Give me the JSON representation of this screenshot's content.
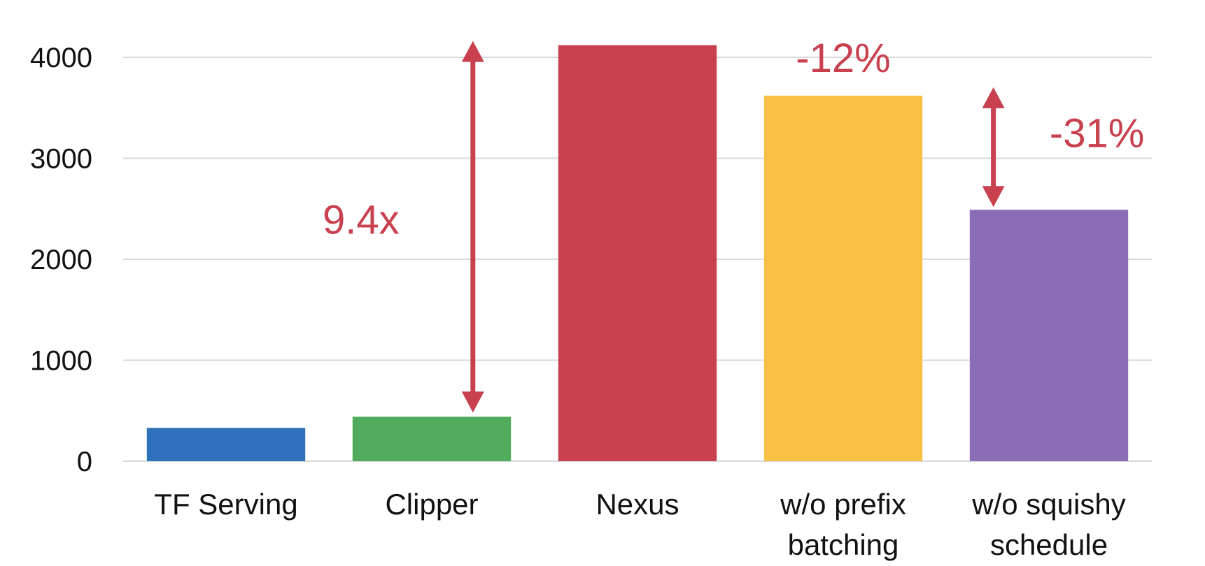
{
  "chart_data": {
    "type": "bar",
    "title": "",
    "xlabel": "",
    "ylabel": "",
    "ylim": [
      0,
      4000
    ],
    "yticks": [
      0,
      1000,
      2000,
      3000,
      4000
    ],
    "grid": true,
    "categories": [
      [
        "TF Serving"
      ],
      [
        "Clipper"
      ],
      [
        "Nexus"
      ],
      [
        "w/o prefix",
        "batching"
      ],
      [
        "w/o squishy",
        "schedule"
      ]
    ],
    "values": [
      330,
      440,
      4120,
      3620,
      2490
    ],
    "colors": [
      "#2e72bb",
      "#50ac5a",
      "#c9404f",
      "#f5c043",
      "#8b6db5"
    ],
    "annotations": [
      {
        "text": "9.4x",
        "type": "double-arrow",
        "from": 440,
        "to": 4120,
        "color": "#c9404f"
      },
      {
        "text": "-12%",
        "type": "label",
        "bar": 3,
        "color": "#c9404f"
      },
      {
        "text": "-31%",
        "type": "double-arrow",
        "from": 2490,
        "to": 3620,
        "color": "#c9404f"
      }
    ]
  }
}
